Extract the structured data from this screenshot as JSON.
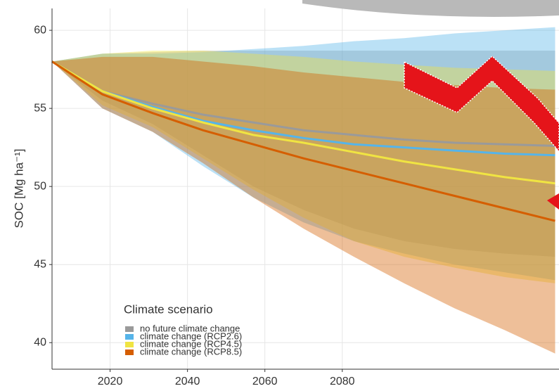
{
  "chart_data": {
    "type": "line",
    "y_label": "SOC [Mg ha⁻¹]",
    "legend_title": "Climate scenario",
    "legend_position": "bottom-left",
    "grid": true,
    "x": [
      2005,
      2018,
      2031,
      2044,
      2057,
      2070,
      2083,
      2096,
      2109,
      2122,
      2135
    ],
    "xlim": [
      2005,
      2136
    ],
    "xticks": [
      2020,
      2040,
      2060,
      2080
    ],
    "ylim": [
      38.3,
      61.4
    ],
    "yticks": [
      40,
      45,
      50,
      55,
      60
    ],
    "series": [
      {
        "name": "no future climate change",
        "color": "#9a9a9a",
        "values": [
          58,
          56.1,
          55.3,
          54.6,
          54.1,
          53.6,
          53.3,
          53.0,
          52.8,
          52.7,
          52.6
        ],
        "upper": [
          58,
          58.5,
          58.6,
          58.7,
          58.7,
          58.7,
          58.7,
          58.7,
          58.7,
          58.7,
          58.7
        ],
        "lower": [
          58,
          55.5,
          54.0,
          52.0,
          50.0,
          48.5,
          47.3,
          46.5,
          46.0,
          45.7,
          45.5
        ]
      },
      {
        "name": "climate change (RCP2.6)",
        "color": "#56b4e9",
        "values": [
          58,
          56.1,
          55.1,
          54.2,
          53.6,
          53.1,
          52.7,
          52.5,
          52.3,
          52.1,
          52.0
        ],
        "upper": [
          58,
          58.5,
          58.5,
          58.6,
          58.8,
          59.0,
          59.3,
          59.5,
          59.8,
          60.0,
          60.2
        ],
        "lower": [
          58,
          55.0,
          53.5,
          51.3,
          49.3,
          47.7,
          46.5,
          45.7,
          45.0,
          44.5,
          44.0
        ]
      },
      {
        "name": "climate change (RCP4.5)",
        "color": "#f0e442",
        "values": [
          58,
          56.1,
          55.0,
          54.1,
          53.3,
          52.8,
          52.2,
          51.6,
          51.1,
          50.6,
          50.2
        ],
        "upper": [
          58,
          58.5,
          58.7,
          58.7,
          58.5,
          58.3,
          58.0,
          57.8,
          57.6,
          57.5,
          57.4
        ],
        "lower": [
          58,
          55.2,
          53.8,
          51.8,
          49.8,
          48.0,
          46.5,
          45.5,
          44.8,
          44.2,
          43.8
        ]
      },
      {
        "name": "climate change (RCP8.5)",
        "color": "#d55e00",
        "values": [
          58,
          55.9,
          54.7,
          53.6,
          52.7,
          51.8,
          51.0,
          50.2,
          49.4,
          48.6,
          47.8
        ],
        "upper": [
          58,
          58.3,
          58.3,
          58.0,
          57.7,
          57.3,
          57.0,
          56.7,
          56.5,
          56.3,
          56.2
        ],
        "lower": [
          58,
          55.0,
          53.5,
          51.5,
          49.3,
          47.3,
          45.5,
          43.8,
          42.2,
          40.8,
          39.3
        ]
      }
    ]
  }
}
